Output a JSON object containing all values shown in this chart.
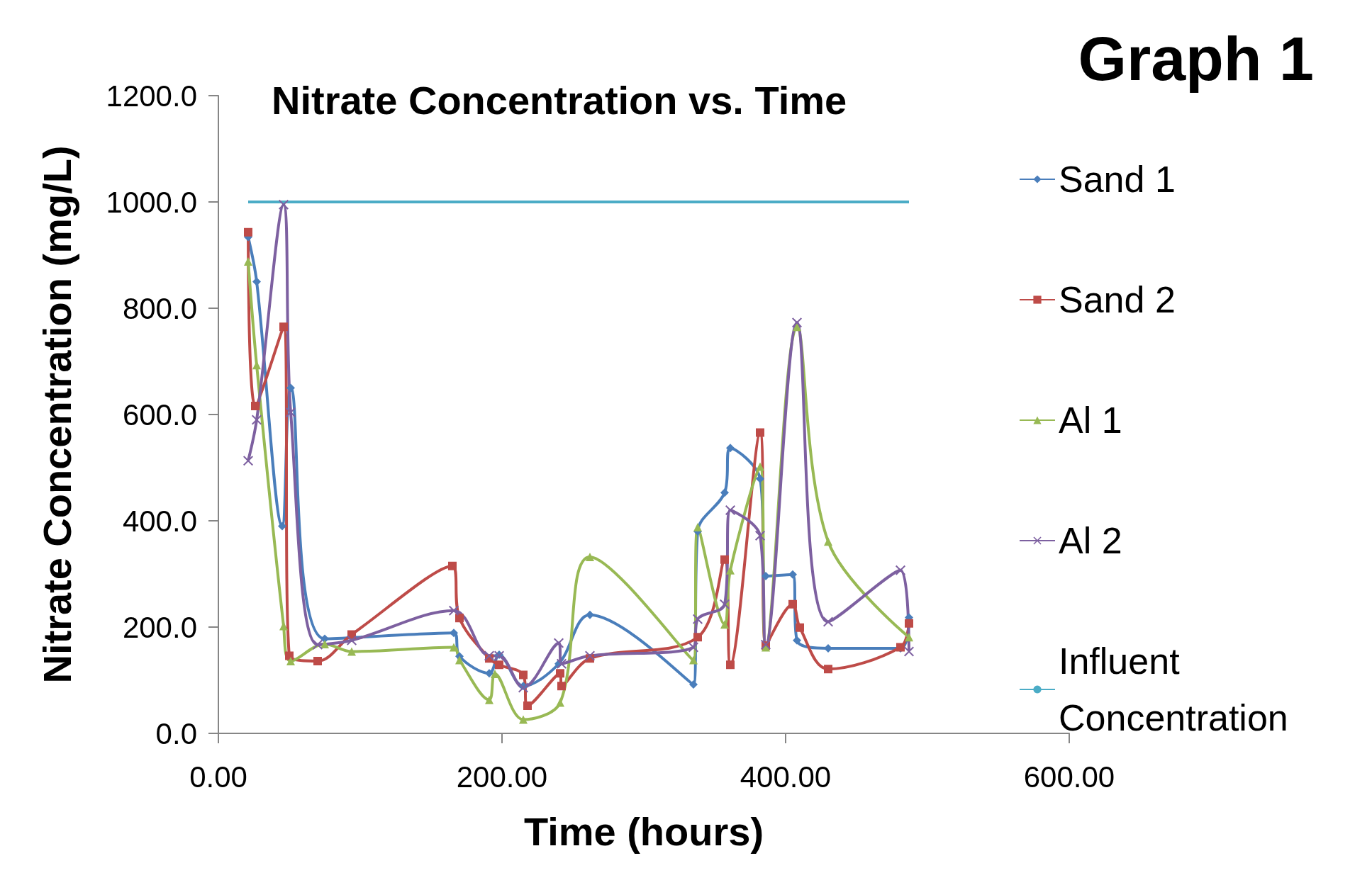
{
  "chart_data": {
    "type": "line",
    "title": "Nitrate Concentration vs. Time",
    "xlabel": "Time (hours)",
    "ylabel": "Nitrate Concentration (mg/L)",
    "annotations": [
      "Graph 1"
    ],
    "xlim": [
      0,
      600
    ],
    "xticks": [
      {
        "value": 0,
        "label": "0.00"
      },
      {
        "value": 200,
        "label": "200.00"
      },
      {
        "value": 400,
        "label": "400.00"
      },
      {
        "value": 600,
        "label": "600.00"
      }
    ],
    "ylim": [
      0,
      1200
    ],
    "yticks": [
      {
        "value": 0,
        "label": "0.0"
      },
      {
        "value": 200,
        "label": "200.0"
      },
      {
        "value": 400,
        "label": "400.0"
      },
      {
        "value": 600,
        "label": "600.0"
      },
      {
        "value": 800,
        "label": "800.0"
      },
      {
        "value": 1000,
        "label": "1000.0"
      },
      {
        "value": 1200,
        "label": "1200.0"
      }
    ],
    "grid": false,
    "legend": "right",
    "series": [
      {
        "name": "Sand 1",
        "color": "#4a7ebb",
        "marker": "diamond",
        "x": [
          21,
          27,
          45,
          51,
          75,
          166,
          170,
          191,
          198,
          215,
          240,
          262,
          335,
          338,
          357,
          361,
          382,
          386,
          405,
          408,
          430,
          481,
          487
        ],
        "values": [
          934,
          850,
          390,
          650,
          178,
          189,
          145,
          113,
          148,
          89,
          131,
          223,
          92,
          380,
          453,
          537,
          479,
          296,
          299,
          175,
          160,
          160,
          218
        ]
      },
      {
        "name": "Sand 2",
        "color": "#be4b48",
        "marker": "square",
        "x": [
          21,
          26,
          46,
          50,
          70,
          94,
          165,
          170,
          191,
          198,
          215,
          218,
          241,
          242,
          262,
          338,
          357,
          361,
          382,
          386,
          405,
          410,
          430,
          481,
          487
        ],
        "values": [
          943,
          616,
          765,
          146,
          136,
          186,
          315,
          217,
          141,
          129,
          110,
          52,
          113,
          89,
          141,
          181,
          327,
          129,
          566,
          165,
          243,
          199,
          121,
          162,
          207
        ]
      },
      {
        "name": "Al 1",
        "color": "#98b954",
        "marker": "triangle",
        "x": [
          21,
          27,
          46,
          51,
          75,
          94,
          166,
          170,
          191,
          195,
          215,
          241,
          262,
          335,
          338,
          357,
          361,
          382,
          386,
          408,
          430,
          487
        ],
        "values": [
          888,
          693,
          202,
          136,
          168,
          154,
          162,
          138,
          63,
          112,
          26,
          58,
          332,
          138,
          388,
          205,
          307,
          502,
          162,
          765,
          361,
          181
        ]
      },
      {
        "name": "Al 2",
        "color": "#7d60a0",
        "marker": "cross",
        "x": [
          21,
          27,
          46,
          51,
          70,
          94,
          166,
          191,
          198,
          215,
          240,
          242,
          262,
          335,
          338,
          357,
          361,
          382,
          386,
          408,
          430,
          481,
          487
        ],
        "values": [
          513,
          590,
          995,
          604,
          167,
          175,
          231,
          146,
          146,
          86,
          170,
          131,
          146,
          162,
          215,
          243,
          420,
          372,
          167,
          773,
          210,
          307,
          154
        ]
      },
      {
        "name": "Influent Concentration",
        "color": "#4bacc6",
        "marker": "none",
        "x": [
          21,
          487
        ],
        "values": [
          1000,
          1000
        ]
      }
    ]
  }
}
